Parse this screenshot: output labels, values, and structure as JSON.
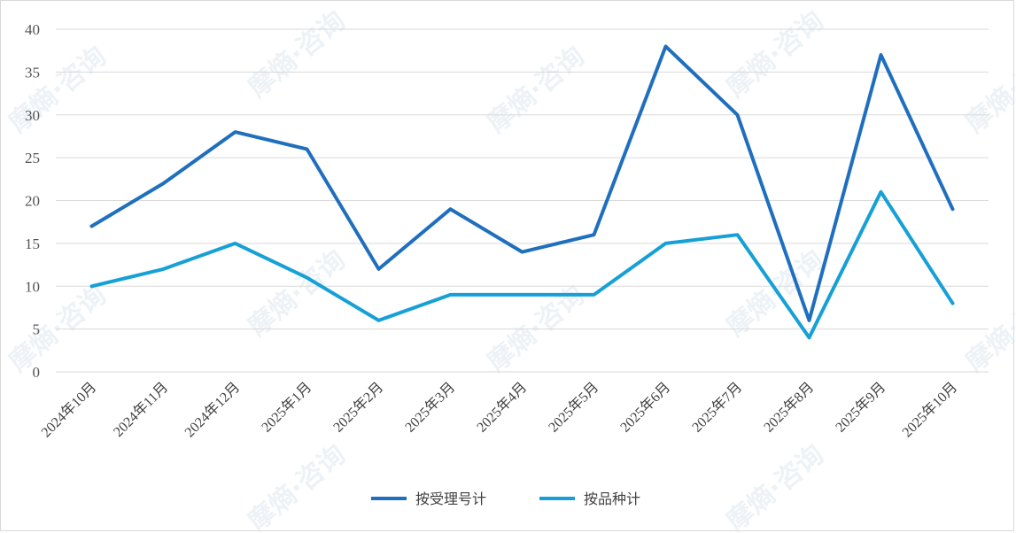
{
  "watermark": "摩熵·咨询",
  "chart_data": {
    "type": "line",
    "title": "",
    "xlabel": "",
    "ylabel": "",
    "categories": [
      "2024年10月",
      "2024年11月",
      "2024年12月",
      "2025年1月",
      "2025年2月",
      "2025年3月",
      "2025年4月",
      "2025年5月",
      "2025年6月",
      "2025年7月",
      "2025年8月",
      "2025年9月",
      "2025年10月"
    ],
    "ylim": [
      0,
      40
    ],
    "yticks": [
      0,
      5,
      10,
      15,
      20,
      25,
      30,
      35,
      40
    ],
    "grid": true,
    "legend_position": "bottom",
    "series": [
      {
        "name": "按受理号计",
        "color": "#1f6fbe",
        "values": [
          17,
          22,
          28,
          26,
          12,
          19,
          14,
          16,
          38,
          30,
          6,
          37,
          19
        ]
      },
      {
        "name": "按品种计",
        "color": "#16a0d6",
        "values": [
          10,
          12,
          15,
          11,
          6,
          9,
          9,
          9,
          15,
          16,
          4,
          21,
          8
        ]
      }
    ]
  }
}
